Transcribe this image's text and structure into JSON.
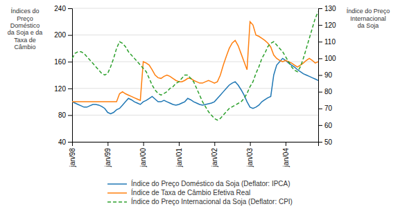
{
  "chart_data": {
    "type": "line",
    "ylabel": "Índices do\nPreço\nDoméstico\nda Soja e da\nTaxa de\nCâmbio",
    "y2label": "Índice do Preço\nInternacional\nda Soja",
    "categories": [
      "jan/98",
      null,
      null,
      null,
      null,
      null,
      null,
      null,
      null,
      null,
      null,
      null,
      "jan/99",
      null,
      null,
      null,
      null,
      null,
      null,
      null,
      null,
      null,
      null,
      null,
      "jan/00",
      null,
      null,
      null,
      null,
      null,
      null,
      null,
      null,
      null,
      null,
      null,
      "jan/01",
      null,
      null,
      null,
      null,
      null,
      null,
      null,
      null,
      null,
      null,
      null,
      "jan/02",
      null,
      null,
      null,
      null,
      null,
      null,
      null,
      null,
      null,
      null,
      null,
      "jan/03",
      null,
      null,
      null,
      null,
      null,
      null,
      null,
      null,
      null,
      null,
      null,
      "jan/04",
      null,
      null,
      null,
      null,
      null,
      null,
      null,
      null,
      null,
      null,
      null
    ],
    "ylim": [
      40,
      240
    ],
    "yticks": [
      40,
      80,
      120,
      160,
      200,
      240
    ],
    "y2lim": [
      50,
      130
    ],
    "y2ticks": [
      50,
      60,
      70,
      80,
      90,
      100,
      110,
      120,
      130
    ],
    "grid": true,
    "legend": "bottom",
    "series": [
      {
        "name": "Índice do Preço Doméstico da Soja (Deflator: IPCA)",
        "line_style": "solid",
        "values": [
          100,
          98,
          96,
          94,
          92,
          92,
          94,
          96,
          96,
          95,
          93,
          90,
          84,
          82,
          84,
          88,
          90,
          95,
          100,
          105,
          103,
          100,
          98,
          96,
          100,
          102,
          105,
          108,
          104,
          100,
          100,
          102,
          100,
          98,
          96,
          95,
          96,
          98,
          100,
          105,
          103,
          100,
          98,
          96,
          95,
          96,
          97,
          98,
          100,
          105,
          110,
          115,
          120,
          125,
          128,
          130,
          125,
          118,
          110,
          100,
          92,
          90,
          92,
          95,
          100,
          103,
          106,
          108,
          140,
          155,
          160,
          165,
          162,
          158,
          155,
          152,
          148,
          145,
          142,
          140,
          138,
          136,
          134,
          132
        ]
      },
      {
        "name": "Índice de Taxa de Câmbio Efetiva Real",
        "line_style": "solid",
        "values": [
          100,
          100,
          100,
          100,
          100,
          100,
          100,
          100,
          100,
          100,
          100,
          100,
          100,
          100,
          100,
          100,
          112,
          115,
          112,
          110,
          108,
          106,
          104,
          102,
          160,
          158,
          155,
          148,
          140,
          136,
          135,
          138,
          140,
          138,
          135,
          132,
          130,
          130,
          132,
          135,
          135,
          132,
          130,
          128,
          128,
          130,
          132,
          130,
          128,
          130,
          140,
          155,
          168,
          180,
          188,
          192,
          184,
          172,
          160,
          148,
          220,
          215,
          200,
          198,
          195,
          192,
          188,
          182,
          170,
          165,
          162,
          160,
          162,
          160,
          158,
          155,
          152,
          155,
          158,
          162,
          165,
          162,
          158,
          160
        ]
      },
      {
        "name": "Índice do Preço Internacional da Soja (Deflator: CPI)",
        "line_style": "dashed",
        "axis": "y2",
        "values": [
          100,
          103,
          104,
          104,
          103,
          101,
          99,
          97,
          95,
          93,
          91,
          90,
          91,
          95,
          100,
          106,
          110,
          109,
          107,
          104,
          102,
          100,
          98,
          96,
          94,
          92,
          88,
          84,
          81,
          79,
          78,
          79,
          80,
          82,
          83,
          85,
          86,
          88,
          90,
          90,
          88,
          86,
          82,
          78,
          74,
          71,
          68,
          66,
          64,
          63,
          64,
          66,
          68,
          70,
          71,
          72,
          73,
          74,
          76,
          79,
          83,
          86,
          91,
          95,
          100,
          103,
          107,
          109,
          110,
          108,
          106,
          104,
          101,
          98,
          95,
          93,
          92,
          95,
          100,
          106,
          112,
          118,
          124,
          128
        ]
      }
    ]
  }
}
